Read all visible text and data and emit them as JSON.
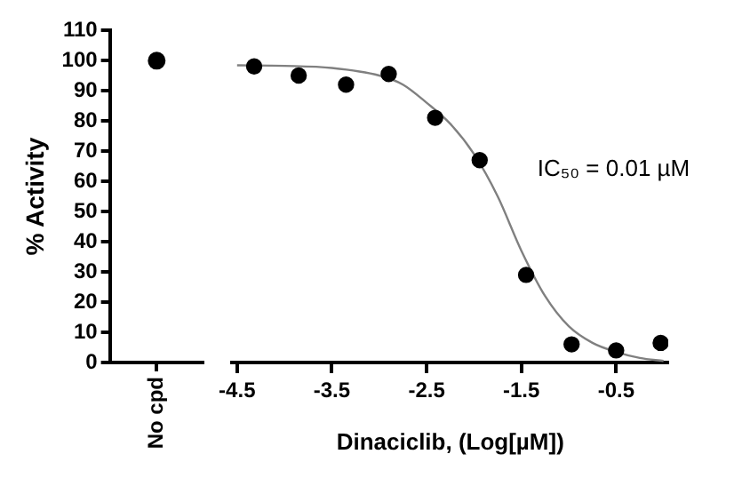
{
  "chart_data": [
    {
      "type": "scatter",
      "categories": [
        "No cpd"
      ],
      "values": [
        100
      ],
      "color": "#000000",
      "marker": "circle",
      "ylabel": "% Activity",
      "ylim": [
        0,
        110
      ],
      "yticks": [
        0,
        10,
        20,
        30,
        40,
        50,
        60,
        70,
        80,
        90,
        100,
        110
      ],
      "grid": false
    },
    {
      "type": "scatter",
      "xlabel": "Dinaciclib, (Log[µM])",
      "xlim": [
        -4.55,
        0.05
      ],
      "xticks": [
        -4.5,
        -3.5,
        -2.5,
        -1.5,
        -0.5
      ],
      "ylim": [
        0,
        110
      ],
      "tick_labels": "x",
      "grid": false,
      "annotations": [
        "IC₅₀ = 0.01 µM"
      ],
      "series": [
        {
          "color": "#000000",
          "marker": "circle",
          "x": [
            -4.32,
            -3.85,
            -3.35,
            -2.9,
            -2.41,
            -1.94,
            -1.45,
            -0.97,
            -0.5,
            -0.03
          ],
          "values": [
            98,
            95,
            92,
            95.5,
            81,
            67,
            29,
            6,
            4,
            6.5
          ]
        },
        {
          "type": "line",
          "color": "#808080",
          "marker": "none",
          "line_style": "solid",
          "x": [
            -4.5,
            -4,
            -3.5,
            -3,
            -2.75,
            -2.5,
            -2.25,
            -2,
            -1.75,
            -1.5,
            -1.25,
            -1,
            -0.75,
            -0.5,
            -0.25,
            0
          ],
          "values": [
            98.4,
            98.2,
            97.5,
            95,
            92,
            86,
            79,
            69,
            55,
            37,
            22,
            12,
            6.5,
            3.5,
            1.5,
            0.5
          ]
        }
      ]
    }
  ]
}
